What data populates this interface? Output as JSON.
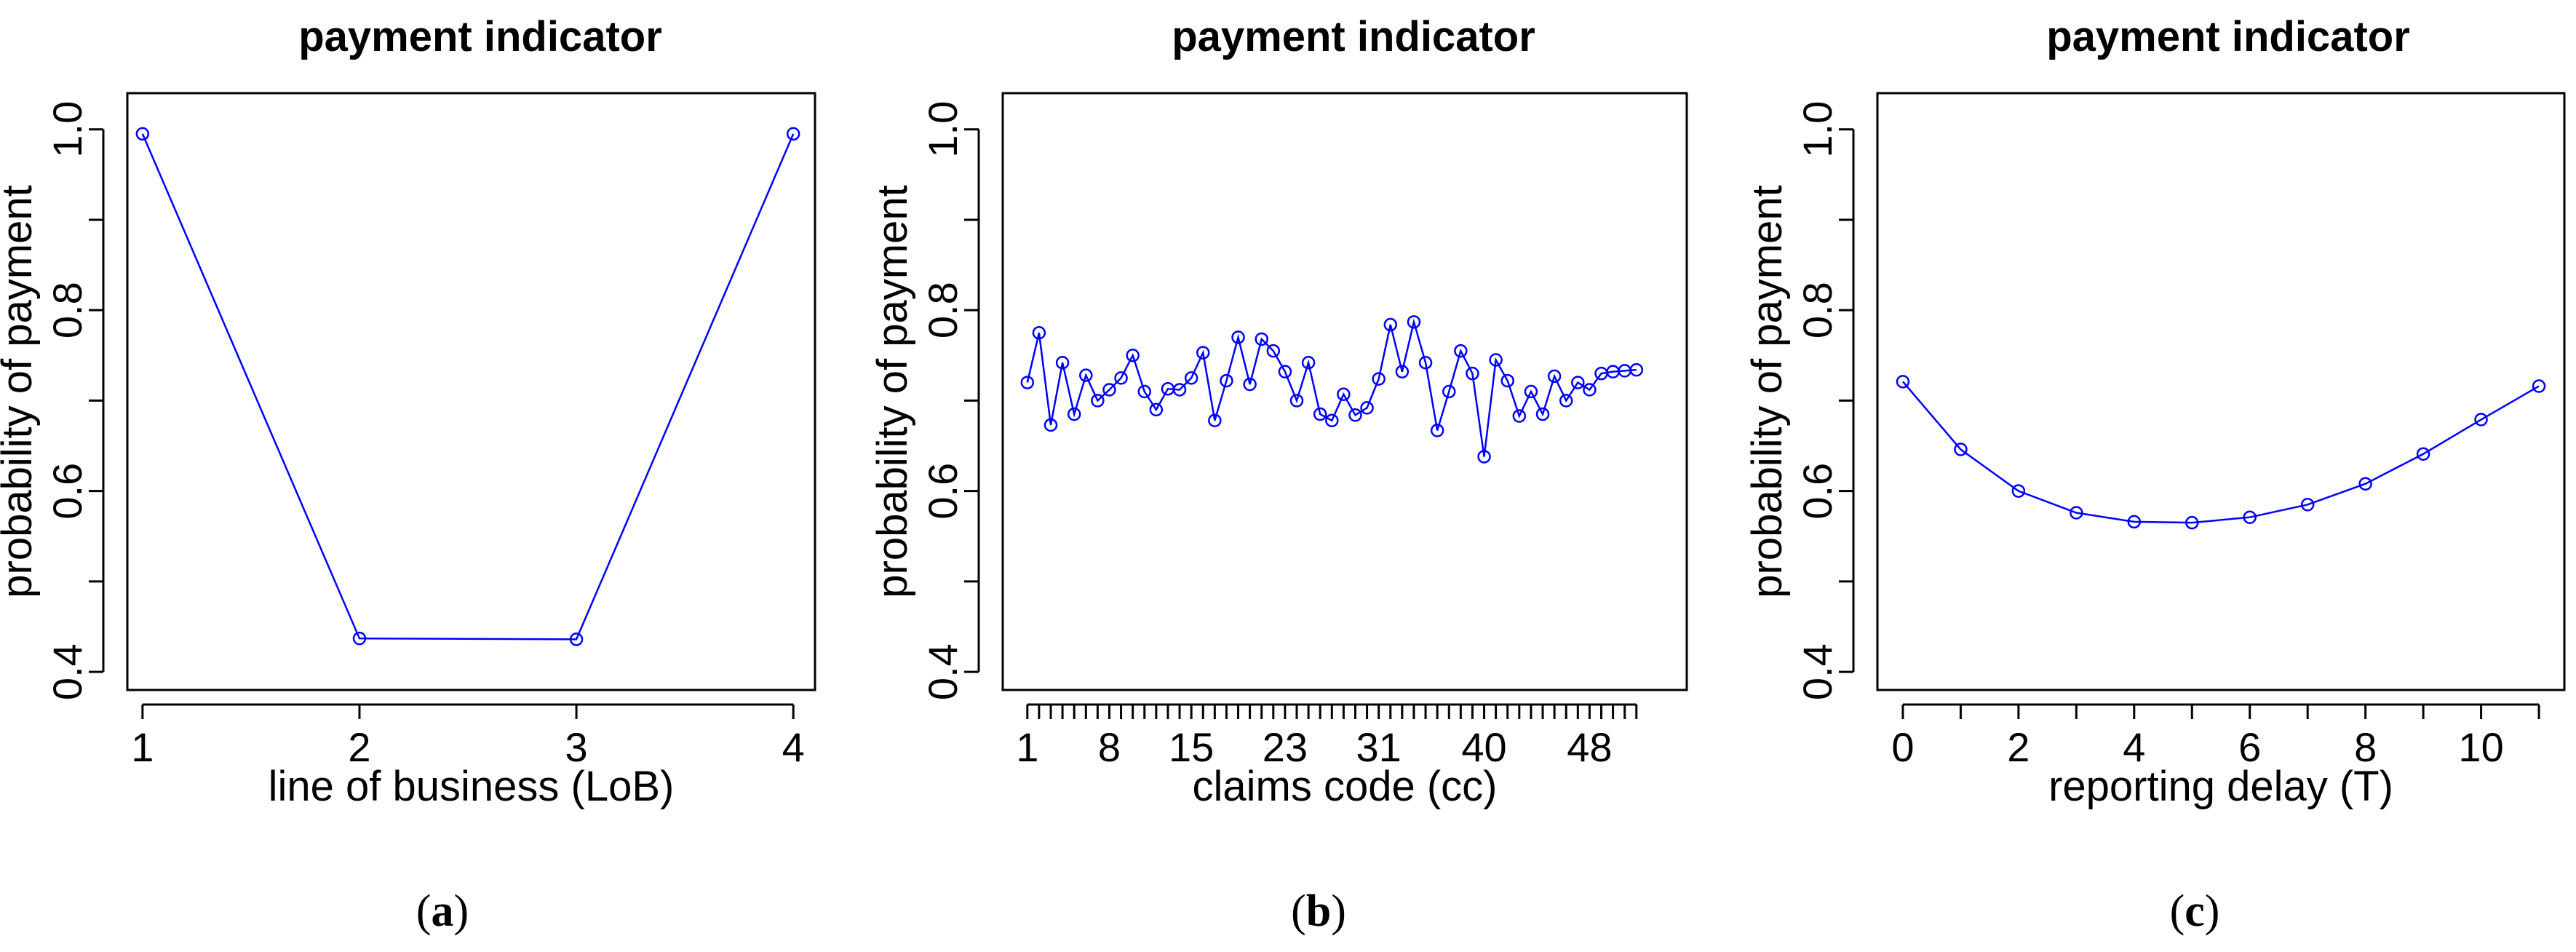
{
  "chart_data": [
    {
      "type": "line",
      "title": "payment indicator",
      "xlabel": "line of business (LoB)",
      "ylabel": "probability of payment",
      "caption_letter": "a",
      "x": [
        1,
        2,
        3,
        4
      ],
      "y": [
        0.995,
        0.437,
        0.436,
        0.995
      ],
      "xlim": [
        0.93,
        4.1
      ],
      "ylim": [
        0.38,
        1.04
      ],
      "y_ticks": [
        0.4,
        0.5,
        0.6,
        0.7,
        0.8,
        0.9,
        1.0
      ],
      "y_tick_labels": [
        "0.4",
        "",
        "0.6",
        "",
        "0.8",
        "",
        "1.0"
      ],
      "x_ticks": [
        1,
        2,
        3,
        4
      ],
      "x_tick_labels": [
        "1",
        "2",
        "3",
        "4"
      ],
      "grid": false,
      "legend": "none"
    },
    {
      "type": "line",
      "title": "payment indicator",
      "xlabel": "claims code (cc)",
      "ylabel": "probability of payment",
      "caption_letter": "b",
      "x": [
        1,
        2,
        3,
        4,
        5,
        6,
        7,
        8,
        9,
        10,
        11,
        12,
        13,
        14,
        15,
        16,
        17,
        18,
        19,
        20,
        21,
        22,
        23,
        24,
        25,
        26,
        27,
        28,
        29,
        30,
        31,
        32,
        33,
        34,
        35,
        36,
        37,
        38,
        39,
        40,
        41,
        42,
        43,
        44,
        45,
        46,
        47,
        48,
        49,
        50,
        51,
        52,
        53
      ],
      "y": [
        0.72,
        0.775,
        0.673,
        0.742,
        0.685,
        0.728,
        0.7,
        0.712,
        0.725,
        0.75,
        0.71,
        0.69,
        0.713,
        0.712,
        0.725,
        0.753,
        0.678,
        0.722,
        0.77,
        0.718,
        0.768,
        0.755,
        0.732,
        0.7,
        0.742,
        0.685,
        0.678,
        0.707,
        0.684,
        0.692,
        0.724,
        0.784,
        0.732,
        0.787,
        0.742,
        0.667,
        0.71,
        0.755,
        0.73,
        0.638,
        0.745,
        0.722,
        0.683,
        0.71,
        0.685,
        0.727,
        0.7,
        0.72,
        0.712,
        0.73,
        0.732,
        0.733,
        0.734
      ],
      "xlim": [
        -1.1,
        57.3
      ],
      "ylim": [
        0.38,
        1.04
      ],
      "y_ticks": [
        0.4,
        0.5,
        0.6,
        0.7,
        0.8,
        0.9,
        1.0
      ],
      "y_tick_labels": [
        "0.4",
        "",
        "0.6",
        "",
        "0.8",
        "",
        "1.0"
      ],
      "x_ticks": [
        1,
        2,
        3,
        4,
        5,
        6,
        7,
        8,
        9,
        10,
        11,
        12,
        13,
        14,
        15,
        16,
        17,
        18,
        19,
        20,
        21,
        22,
        23,
        24,
        25,
        26,
        27,
        28,
        29,
        30,
        31,
        32,
        33,
        34,
        35,
        36,
        37,
        38,
        39,
        40,
        41,
        42,
        43,
        44,
        45,
        46,
        47,
        48,
        49,
        50,
        51,
        52,
        53
      ],
      "x_tick_labels": [
        "1",
        "",
        "",
        "",
        "",
        "",
        "",
        "8",
        "",
        "",
        "",
        "",
        "",
        "",
        "15",
        "",
        "",
        "",
        "",
        "",
        "",
        "",
        "23",
        "",
        "",
        "",
        "",
        "",
        "",
        "",
        "31",
        "",
        "",
        "",
        "",
        "",
        "",
        "",
        "",
        "40",
        "",
        "",
        "",
        "",
        "",
        "",
        "",
        "",
        "48",
        "",
        "",
        "",
        "",
        ""
      ],
      "grid": false,
      "legend": "none"
    },
    {
      "type": "line",
      "title": "payment indicator",
      "xlabel": "reporting delay (T)",
      "ylabel": "probability of payment",
      "caption_letter": "c",
      "x": [
        0,
        1,
        2,
        3,
        4,
        5,
        6,
        7,
        8,
        9,
        10,
        11
      ],
      "y": [
        0.721,
        0.646,
        0.6,
        0.576,
        0.566,
        0.565,
        0.571,
        0.585,
        0.608,
        0.641,
        0.679,
        0.716
      ],
      "xlim": [
        -0.44,
        11.44
      ],
      "ylim": [
        0.38,
        1.04
      ],
      "y_ticks": [
        0.4,
        0.5,
        0.6,
        0.7,
        0.8,
        0.9,
        1.0
      ],
      "y_tick_labels": [
        "0.4",
        "",
        "0.6",
        "",
        "0.8",
        "",
        "1.0"
      ],
      "x_ticks": [
        0,
        1,
        2,
        3,
        4,
        5,
        6,
        7,
        8,
        9,
        10,
        11
      ],
      "x_tick_labels": [
        "0",
        "",
        "2",
        "",
        "4",
        "",
        "6",
        "",
        "8",
        "",
        "10",
        ""
      ],
      "grid": false,
      "legend": "none"
    }
  ],
  "colors": {
    "series": "#0000ff",
    "axes": "#000000",
    "background": "#ffffff"
  }
}
